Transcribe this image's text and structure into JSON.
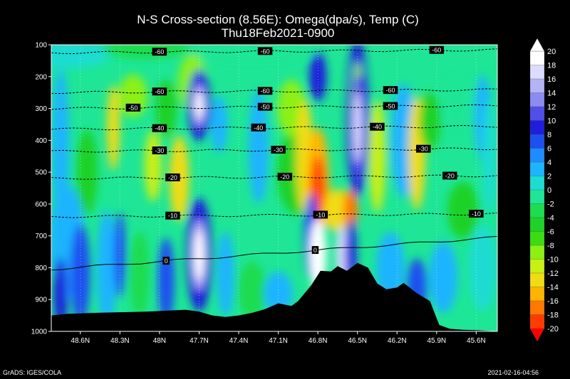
{
  "chart_data": {
    "type": "heatmap",
    "title": "N-S Cross-section (8.56E): Omega(dpa/s), Temp (C)",
    "subtitle": "Thu18Feb2021-0900",
    "x_ticks": [
      "48.6N",
      "48.3N",
      "48N",
      "47.7N",
      "47.4N",
      "47.1N",
      "46.8N",
      "46.5N",
      "46.2N",
      "45.9N",
      "45.6N"
    ],
    "y_ticks": [
      "100",
      "200",
      "300",
      "400",
      "500",
      "600",
      "700",
      "800",
      "900",
      "1000"
    ],
    "y_range": [
      100,
      1000
    ],
    "x_range_lat": [
      48.82,
      45.44
    ],
    "colorbar": {
      "values": [
        20,
        18,
        16,
        14,
        12,
        10,
        8,
        6,
        4,
        2,
        0,
        -2,
        -4,
        -6,
        -8,
        -10,
        -12,
        -14,
        -16,
        -18,
        -20
      ],
      "colors": [
        "#ffffff",
        "#dcdcff",
        "#b4b4f5",
        "#8c8cf0",
        "#5050e6",
        "#1e1edc",
        "#1e50f0",
        "#1e8cff",
        "#1eb4ff",
        "#1edcd2",
        "#1ee696",
        "#1edc50",
        "#1ed228",
        "#3cdc14",
        "#8cf014",
        "#c8f014",
        "#f0dc14",
        "#ffb400",
        "#ff7800",
        "#ff3c00",
        "#ff0000"
      ]
    },
    "isotherms": [
      {
        "value": -60,
        "pressure": 125,
        "labels": [
          "-60",
          "-60",
          "-60"
        ]
      },
      {
        "value": -60,
        "pressure": 250,
        "labels": [
          "-60",
          "-60",
          "-60"
        ]
      },
      {
        "value": -50,
        "pressure": 300,
        "labels": [
          "-50",
          "-50",
          "-50"
        ]
      },
      {
        "value": -40,
        "pressure": 365,
        "labels": [
          "-40",
          "-40",
          "-40"
        ]
      },
      {
        "value": -30,
        "pressure": 435,
        "labels": [
          "-30",
          "-30",
          "-30"
        ]
      },
      {
        "value": -20,
        "pressure": 520,
        "labels": [
          "-20",
          "-20",
          "-20"
        ]
      },
      {
        "value": -10,
        "pressure": 640,
        "labels": [
          "-10",
          "-10",
          "-10"
        ]
      },
      {
        "value": 0,
        "pressure": 805,
        "labels": [
          "0",
          "0"
        ]
      }
    ],
    "terrain_pressure": [
      [
        48.82,
        950
      ],
      [
        48.7,
        945
      ],
      [
        48.5,
        942
      ],
      [
        48.3,
        940
      ],
      [
        48.1,
        938
      ],
      [
        47.95,
        935
      ],
      [
        47.8,
        932
      ],
      [
        47.7,
        938
      ],
      [
        47.6,
        950
      ],
      [
        47.5,
        955
      ],
      [
        47.4,
        950
      ],
      [
        47.3,
        942
      ],
      [
        47.2,
        930
      ],
      [
        47.1,
        912
      ],
      [
        47.0,
        920
      ],
      [
        46.95,
        905
      ],
      [
        46.85,
        855
      ],
      [
        46.78,
        810
      ],
      [
        46.7,
        812
      ],
      [
        46.65,
        795
      ],
      [
        46.58,
        810
      ],
      [
        46.5,
        785
      ],
      [
        46.42,
        800
      ],
      [
        46.35,
        850
      ],
      [
        46.28,
        868
      ],
      [
        46.2,
        862
      ],
      [
        46.15,
        848
      ],
      [
        46.05,
        880
      ],
      [
        45.95,
        905
      ],
      [
        45.88,
        980
      ],
      [
        45.8,
        992
      ],
      [
        45.7,
        995
      ],
      [
        45.6,
        996
      ],
      [
        45.44,
        1000
      ]
    ]
  },
  "footer": {
    "left": "GrADS: IGES/COLA",
    "right": "2021-02-16-04:56"
  }
}
